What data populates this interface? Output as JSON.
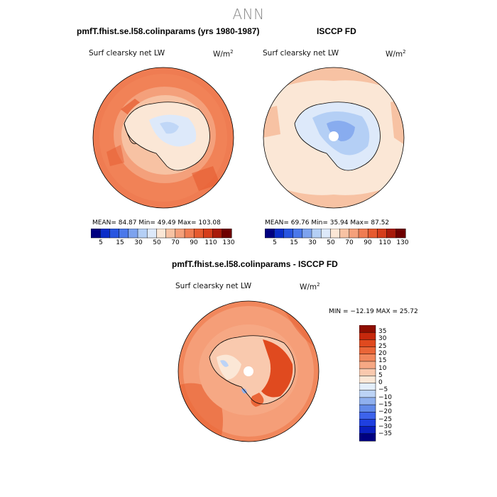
{
  "main_title": "ANN",
  "colors": {
    "cmap14": [
      "#000080",
      "#0a2dc8",
      "#2855e0",
      "#4a78ea",
      "#7da3ee",
      "#b4cff5",
      "#dde9fa",
      "#fbe7d6",
      "#f7c2a3",
      "#f4a07b",
      "#ef7c52",
      "#e65a2f",
      "#d53d1b",
      "#a81a0a",
      "#6e0000"
    ],
    "cmap_diff": [
      "#000080",
      "#0a1fbf",
      "#1f40e0",
      "#3d63eb",
      "#628ae9",
      "#8fb0ef",
      "#bcd3f6",
      "#e3eefb",
      "#fbe7d6",
      "#f9c9ae",
      "#f6a884",
      "#f1875c",
      "#ea6638",
      "#e04a1f",
      "#c6280c",
      "#8f0e00"
    ]
  },
  "chart_data": [
    {
      "type": "heatmap",
      "title": "pmfT.fhist.se.l58.colinparams (yrs 1980-1987)",
      "field_label": "Surf clearsky net LW",
      "units_base": "W/m",
      "units_exp": "2",
      "stats": {
        "mean": 84.87,
        "min": 49.49,
        "max": 103.08
      },
      "stats_text": "MEAN=  84.87  Min=  49.49  Max= 103.08",
      "colorbar_ticks": [
        "5",
        "15",
        "30",
        "50",
        "70",
        "90",
        "110",
        "130"
      ]
    },
    {
      "type": "heatmap",
      "title": "ISCCP FD",
      "field_label": "Surf clearsky net LW",
      "units_base": "W/m",
      "units_exp": "2",
      "stats": {
        "mean": 69.76,
        "min": 35.94,
        "max": 87.52
      },
      "stats_text": "MEAN=  69.76  Min=  35.94  Max=  87.52",
      "colorbar_ticks": [
        "5",
        "15",
        "30",
        "50",
        "70",
        "90",
        "110",
        "130"
      ]
    },
    {
      "type": "heatmap",
      "title": "pmfT.fhist.se.l58.colinparams - ISCCP FD",
      "field_label": "Surf clearsky net LW",
      "units_base": "W/m",
      "units_exp": "2",
      "stats": {
        "min": -12.19,
        "max": 25.72
      },
      "stats_text": "MIN = −12.19 MAX =  25.72",
      "colorbar_ticks": [
        "35",
        "30",
        "25",
        "20",
        "15",
        "10",
        "5",
        "0",
        "−5",
        "−10",
        "−15",
        "−20",
        "−25",
        "−30",
        "−35"
      ]
    }
  ]
}
